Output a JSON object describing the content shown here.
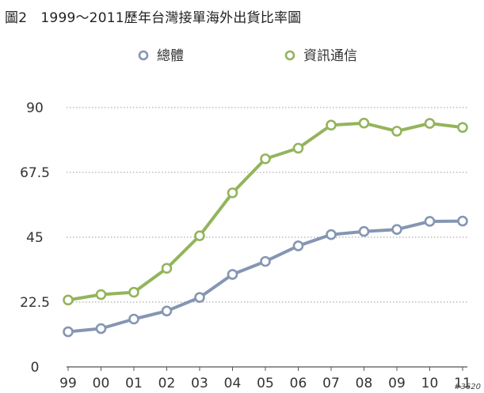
{
  "figure_title": "圖2　1999～2011歷年台灣接單海外出貨比率圖",
  "watermark": "#3620",
  "colors": {
    "series_total": "#8596b3",
    "series_ict": "#94b45c",
    "grid": "#9a9a9a",
    "axis": "#555555",
    "marker_fill": "#ffffff"
  },
  "chart_data": {
    "type": "line",
    "title": "圖2　1999～2011歷年台灣接單海外出貨比率圖",
    "xlabel": "",
    "ylabel": "",
    "categories": [
      "99",
      "00",
      "01",
      "02",
      "03",
      "04",
      "05",
      "06",
      "07",
      "08",
      "09",
      "10",
      "11"
    ],
    "ylim": [
      0,
      90
    ],
    "yticks": [
      "0",
      "22.5",
      "45",
      "67.5",
      "90"
    ],
    "grid": true,
    "legend_position": "top",
    "series": [
      {
        "name": "總體",
        "color": "#8596b3",
        "values": [
          12.2,
          13.3,
          16.6,
          19.4,
          24.1,
          32.1,
          36.6,
          42.0,
          45.9,
          47.0,
          47.7,
          50.5,
          50.6
        ]
      },
      {
        "name": "資訊通信",
        "color": "#94b45c",
        "values": [
          23.2,
          25.1,
          25.9,
          34.2,
          45.5,
          60.4,
          72.2,
          75.9,
          83.9,
          84.6,
          81.8,
          84.5,
          83.1
        ]
      }
    ]
  }
}
